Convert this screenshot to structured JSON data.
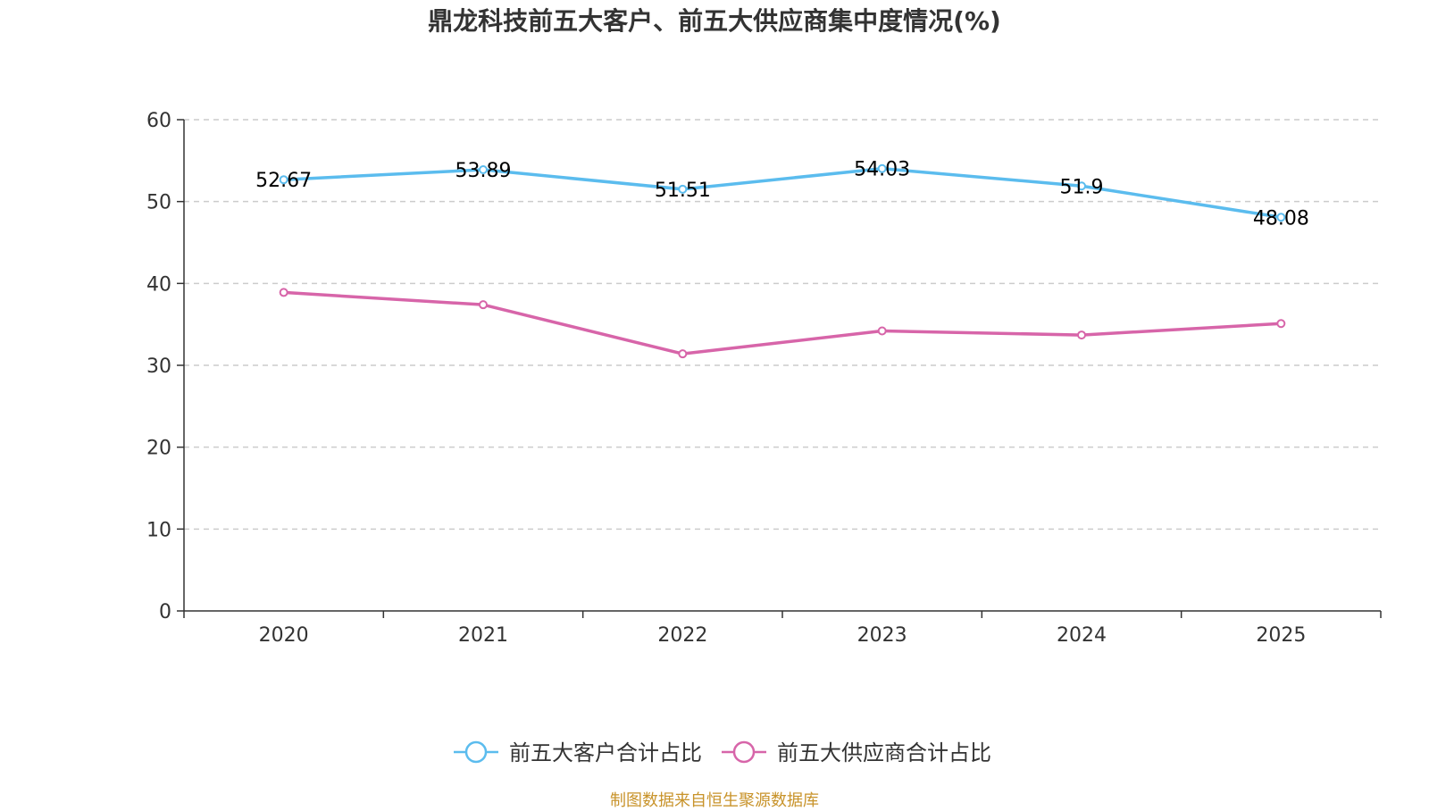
{
  "colors": {
    "customers": "#5bbcee",
    "suppliers": "#d765a9",
    "grid": "#cccccc",
    "axis": "#333333",
    "source": "#c8932a"
  },
  "source_note": "制图数据来自恒生聚源数据库",
  "chart_data": {
    "type": "line",
    "title": "鼎龙科技前五大客户、前五大供应商集中度情况(%)",
    "xlabel": "",
    "ylabel": "",
    "categories": [
      "2020",
      "2021",
      "2022",
      "2023",
      "2024",
      "2025"
    ],
    "ylim": [
      0,
      60
    ],
    "yticks": [
      0,
      10,
      20,
      30,
      40,
      50,
      60
    ],
    "grid": true,
    "legend_position": "bottom-center",
    "series": [
      {
        "name": "前五大客户合计占比",
        "color_key": "customers",
        "values": [
          52.67,
          53.89,
          51.51,
          54.03,
          51.9,
          48.08
        ],
        "labels": [
          "52.67",
          "53.89",
          "51.51",
          "54.03",
          "51.9",
          "48.08"
        ],
        "show_labels": true
      },
      {
        "name": "前五大供应商合计占比",
        "color_key": "suppliers",
        "values": [
          38.9,
          37.4,
          31.4,
          34.2,
          33.7,
          35.1
        ],
        "labels": [],
        "show_labels": false
      }
    ]
  }
}
